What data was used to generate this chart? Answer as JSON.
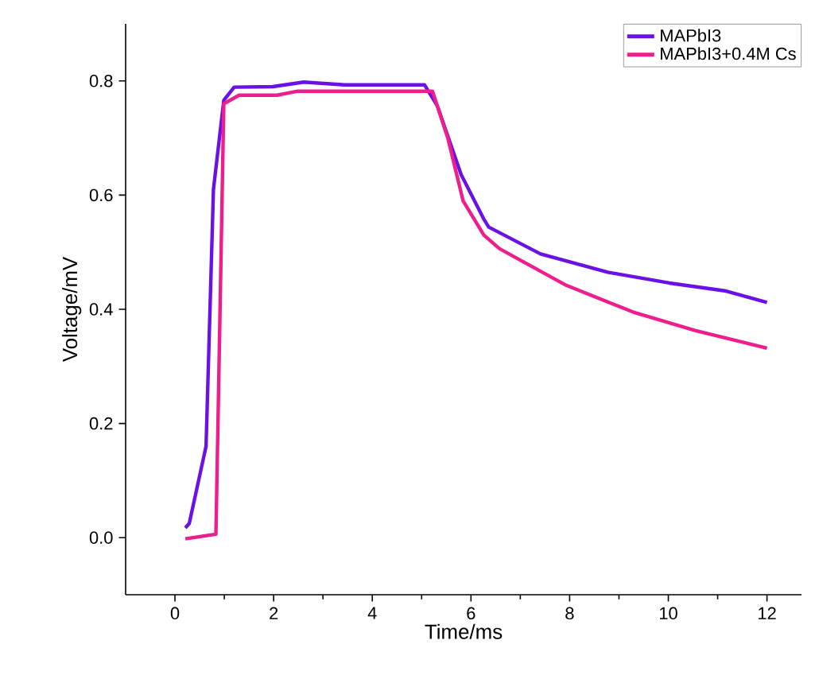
{
  "chart_data": {
    "type": "line",
    "xlabel": "Time/ms",
    "ylabel": "Voltage/mV",
    "xlim": [
      -1,
      12.7
    ],
    "ylim": [
      -0.1,
      0.9
    ],
    "xticks": [
      0,
      2,
      4,
      6,
      8,
      10,
      12
    ],
    "yticks": [
      {
        "value": 0,
        "label": "0.0"
      },
      0.2,
      0.4,
      0.6,
      0.8
    ],
    "legend": "top right",
    "grid": false,
    "marker": "none",
    "line_style": "solid",
    "series": [
      {
        "name": "MAPbI3",
        "color": "#6a12e6",
        "x": [
          0.21,
          0.29,
          0.63,
          0.78,
          0.99,
          1.2,
          1.98,
          2.61,
          3.44,
          5.06,
          5.32,
          5.8,
          6.26,
          6.36,
          7.41,
          8.77,
          10.02,
          11.17,
          12.0
        ],
        "values": [
          0.017,
          0.025,
          0.16,
          0.61,
          0.766,
          0.789,
          0.79,
          0.798,
          0.793,
          0.793,
          0.756,
          0.636,
          0.558,
          0.544,
          0.497,
          0.465,
          0.446,
          0.432,
          0.412
        ]
      },
      {
        "name": "MAPbI3+0.4M Cs",
        "color": "#ee1e8c",
        "x": [
          0.21,
          0.83,
          0.88,
          0.99,
          1.3,
          2.07,
          2.49,
          5.22,
          5.53,
          5.84,
          6.26,
          6.58,
          7.93,
          9.29,
          10.54,
          12.0
        ],
        "values": [
          -0.002,
          0.006,
          0.24,
          0.76,
          0.775,
          0.775,
          0.782,
          0.782,
          0.7,
          0.59,
          0.53,
          0.506,
          0.442,
          0.395,
          0.363,
          0.332
        ]
      }
    ]
  }
}
